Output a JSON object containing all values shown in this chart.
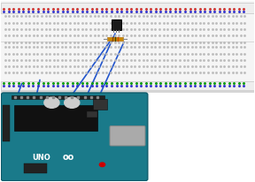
{
  "bg_color": "#ffffff",
  "figsize": [
    2.88,
    2.06
  ],
  "dpi": 100,
  "breadboard": {
    "body_color": "#f5f5f5",
    "border_color": "#bbbbbb",
    "rail_color": "#eeeeee",
    "dot_red": "#cc3333",
    "dot_blue": "#3333cc",
    "dot_green": "#009900",
    "dot_gray": "#bbbbbb"
  },
  "arduino": {
    "board_color": "#1a7a8a",
    "border_color": "#0d5a6a",
    "dark": "#111111",
    "cap_color": "#cccccc",
    "usb_color": "#aaaaaa",
    "led_color": "#cc0000",
    "pin_color": "#888888",
    "text_color": "#ffffff"
  },
  "sensor_color": "#1a1a1a",
  "resistor_color": "#cc8800",
  "wire_color": "#2255cc",
  "wire_lw": 1.2
}
